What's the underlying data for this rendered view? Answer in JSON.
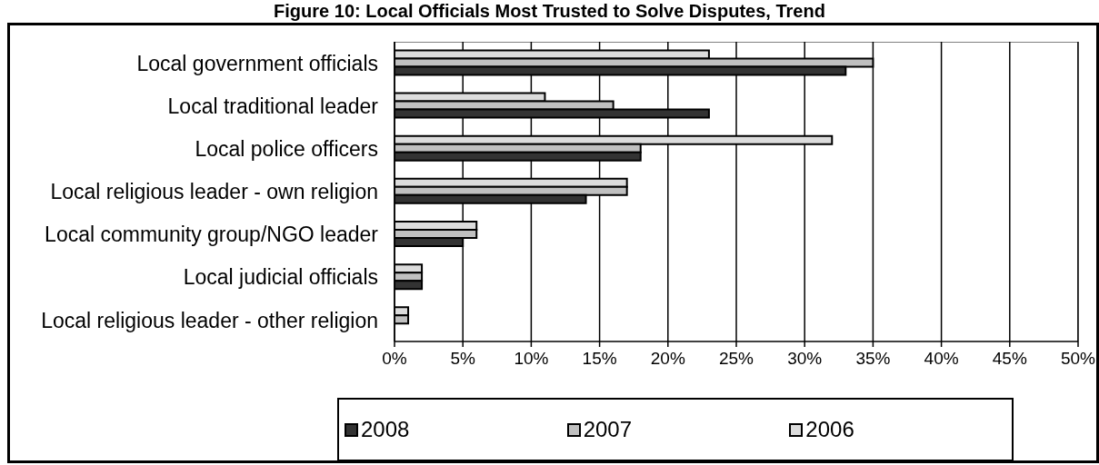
{
  "chart_data": {
    "type": "bar",
    "orientation": "horizontal",
    "title": "Figure 10: Local Officials Most Trusted to Solve Disputes, Trend",
    "categories": [
      "Local government officials",
      "Local traditional leader",
      "Local police officers",
      "Local religious leader - own religion",
      "Local community group/NGO leader",
      "Local judicial officials",
      "Local religious leader - other religion"
    ],
    "series": [
      {
        "name": "2008",
        "color": "#333333",
        "values": [
          33,
          23,
          18,
          14,
          5,
          2,
          0
        ]
      },
      {
        "name": "2007",
        "color": "#c0c0c0",
        "values": [
          35,
          16,
          18,
          17,
          6,
          2,
          1
        ]
      },
      {
        "name": "2006",
        "color": "#dcdcdc",
        "values": [
          23,
          11,
          32,
          17,
          6,
          2,
          1
        ]
      }
    ],
    "xlim": [
      0,
      50
    ],
    "xticks": [
      {
        "value": 0,
        "label": "0%"
      },
      {
        "value": 5,
        "label": "5%"
      },
      {
        "value": 10,
        "label": "10%"
      },
      {
        "value": 15,
        "label": "15%"
      },
      {
        "value": 20,
        "label": "20%"
      },
      {
        "value": 25,
        "label": "25%"
      },
      {
        "value": 30,
        "label": "30%"
      },
      {
        "value": 35,
        "label": "35%"
      },
      {
        "value": 40,
        "label": "40%"
      },
      {
        "value": 45,
        "label": "45%"
      },
      {
        "value": 50,
        "label": "50%"
      }
    ],
    "grid": "x",
    "legend": "bottom"
  }
}
